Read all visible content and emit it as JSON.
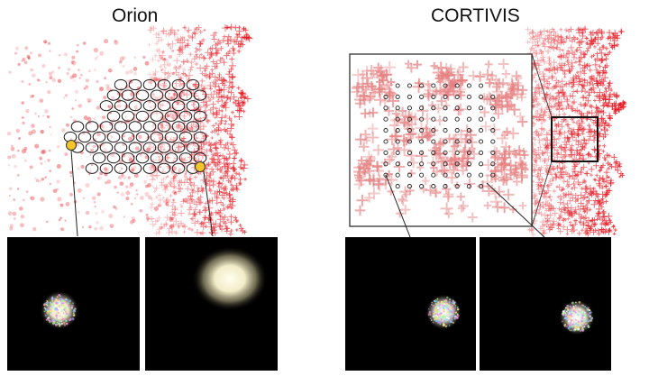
{
  "panels": [
    {
      "title": "Orion"
    },
    {
      "title": "CORTIVIS"
    }
  ],
  "colors": {
    "phosphene_red": "#e8141e",
    "highlight_yellow": "#f5c52a",
    "electrode_ring": "#1a1a1a",
    "image_background": "#000000",
    "cluster_peach": "#e57f80"
  }
}
